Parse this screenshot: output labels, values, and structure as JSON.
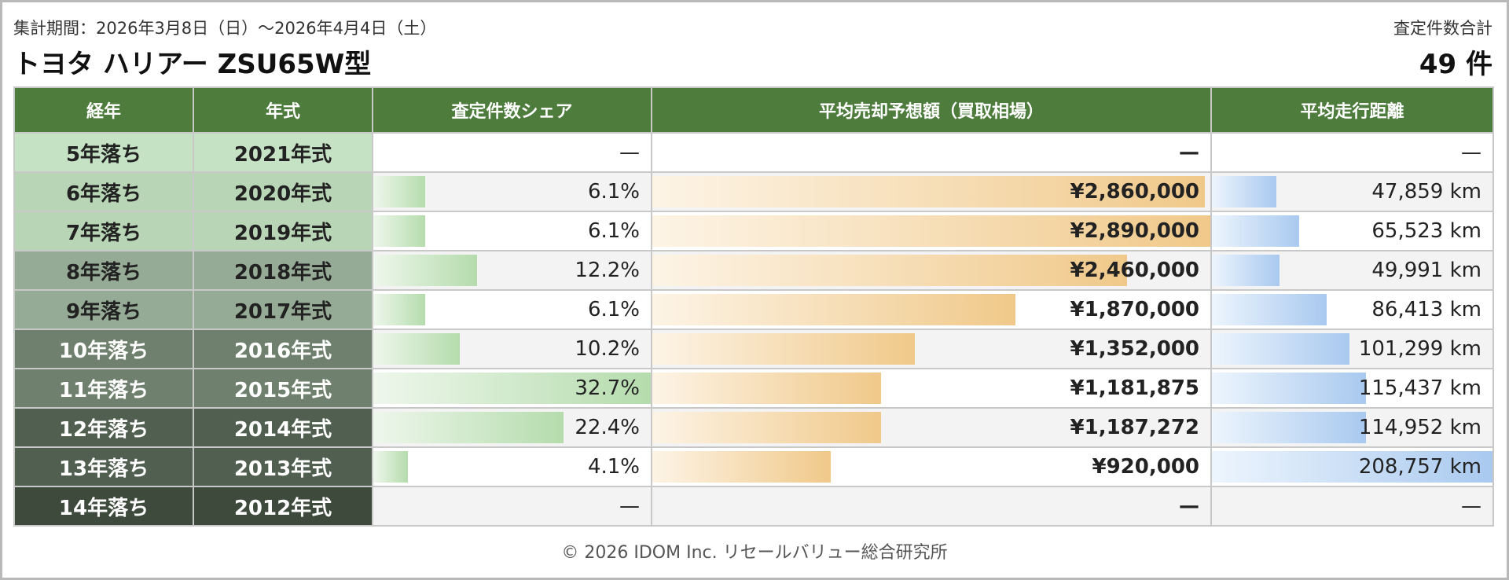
{
  "header": {
    "period": "集計期間：2026年3月8日（日）〜2026年4月4日（土）",
    "title": "トヨタ ハリアー ZSU65W型",
    "total_label": "査定件数合計",
    "total_value": "49 件"
  },
  "table": {
    "columns": [
      "経年",
      "年式",
      "査定件数シェア",
      "平均売却予想額（買取相場）",
      "平均走行距離"
    ],
    "rows": [
      {
        "age": "5年落ち",
        "year": "2021年式",
        "share": "—",
        "share_pct": 0,
        "price": "—",
        "price_frac": 0,
        "km": "—",
        "km_frac": 0,
        "age_bg": "#c6e2c4"
      },
      {
        "age": "6年落ち",
        "year": "2020年式",
        "share": "6.1%",
        "share_pct": 6.1,
        "price": "¥2,860,000",
        "price_frac": 0.99,
        "km": "47,859 km",
        "km_frac": 0.23,
        "age_bg": "#b8d6b6"
      },
      {
        "age": "7年落ち",
        "year": "2019年式",
        "share": "6.1%",
        "share_pct": 6.1,
        "price": "¥2,890,000",
        "price_frac": 1.0,
        "km": "65,523 km",
        "km_frac": 0.31,
        "age_bg": "#b8d6b6"
      },
      {
        "age": "8年落ち",
        "year": "2018年式",
        "share": "12.2%",
        "share_pct": 12.2,
        "price": "¥2,460,000",
        "price_frac": 0.85,
        "km": "49,991 km",
        "km_frac": 0.24,
        "age_bg": "#96ab96"
      },
      {
        "age": "9年落ち",
        "year": "2017年式",
        "share": "6.1%",
        "share_pct": 6.1,
        "price": "¥1,870,000",
        "price_frac": 0.65,
        "km": "86,413 km",
        "km_frac": 0.41,
        "age_bg": "#96ab96"
      },
      {
        "age": "10年落ち",
        "year": "2016年式",
        "share": "10.2%",
        "share_pct": 10.2,
        "price": "¥1,352,000",
        "price_frac": 0.47,
        "km": "101,299 km",
        "km_frac": 0.49,
        "age_bg": "#6f816e"
      },
      {
        "age": "11年落ち",
        "year": "2015年式",
        "share": "32.7%",
        "share_pct": 32.7,
        "price": "¥1,181,875",
        "price_frac": 0.41,
        "km": "115,437 km",
        "km_frac": 0.55,
        "age_bg": "#6f816e"
      },
      {
        "age": "12年落ち",
        "year": "2014年式",
        "share": "22.4%",
        "share_pct": 22.4,
        "price": "¥1,187,272",
        "price_frac": 0.41,
        "km": "114,952 km",
        "km_frac": 0.55,
        "age_bg": "#515f50"
      },
      {
        "age": "13年落ち",
        "year": "2013年式",
        "share": "4.1%",
        "share_pct": 4.1,
        "price": "¥920,000",
        "price_frac": 0.32,
        "km": "208,757 km",
        "km_frac": 1.0,
        "age_bg": "#515f50"
      },
      {
        "age": "14年落ち",
        "year": "2012年式",
        "share": "—",
        "share_pct": 0,
        "price": "—",
        "price_frac": 0,
        "km": "—",
        "km_frac": 0,
        "age_bg": "#3d4a3c"
      }
    ]
  },
  "footer": {
    "copyright": "© 2026 IDOM Inc. リセールバリュー総合研究所"
  },
  "colors": {
    "header_green": "#4d7c3d",
    "share_bar": "#b5dcad",
    "price_bar": "#f0c98a",
    "km_bar": "#a9c9ef"
  }
}
